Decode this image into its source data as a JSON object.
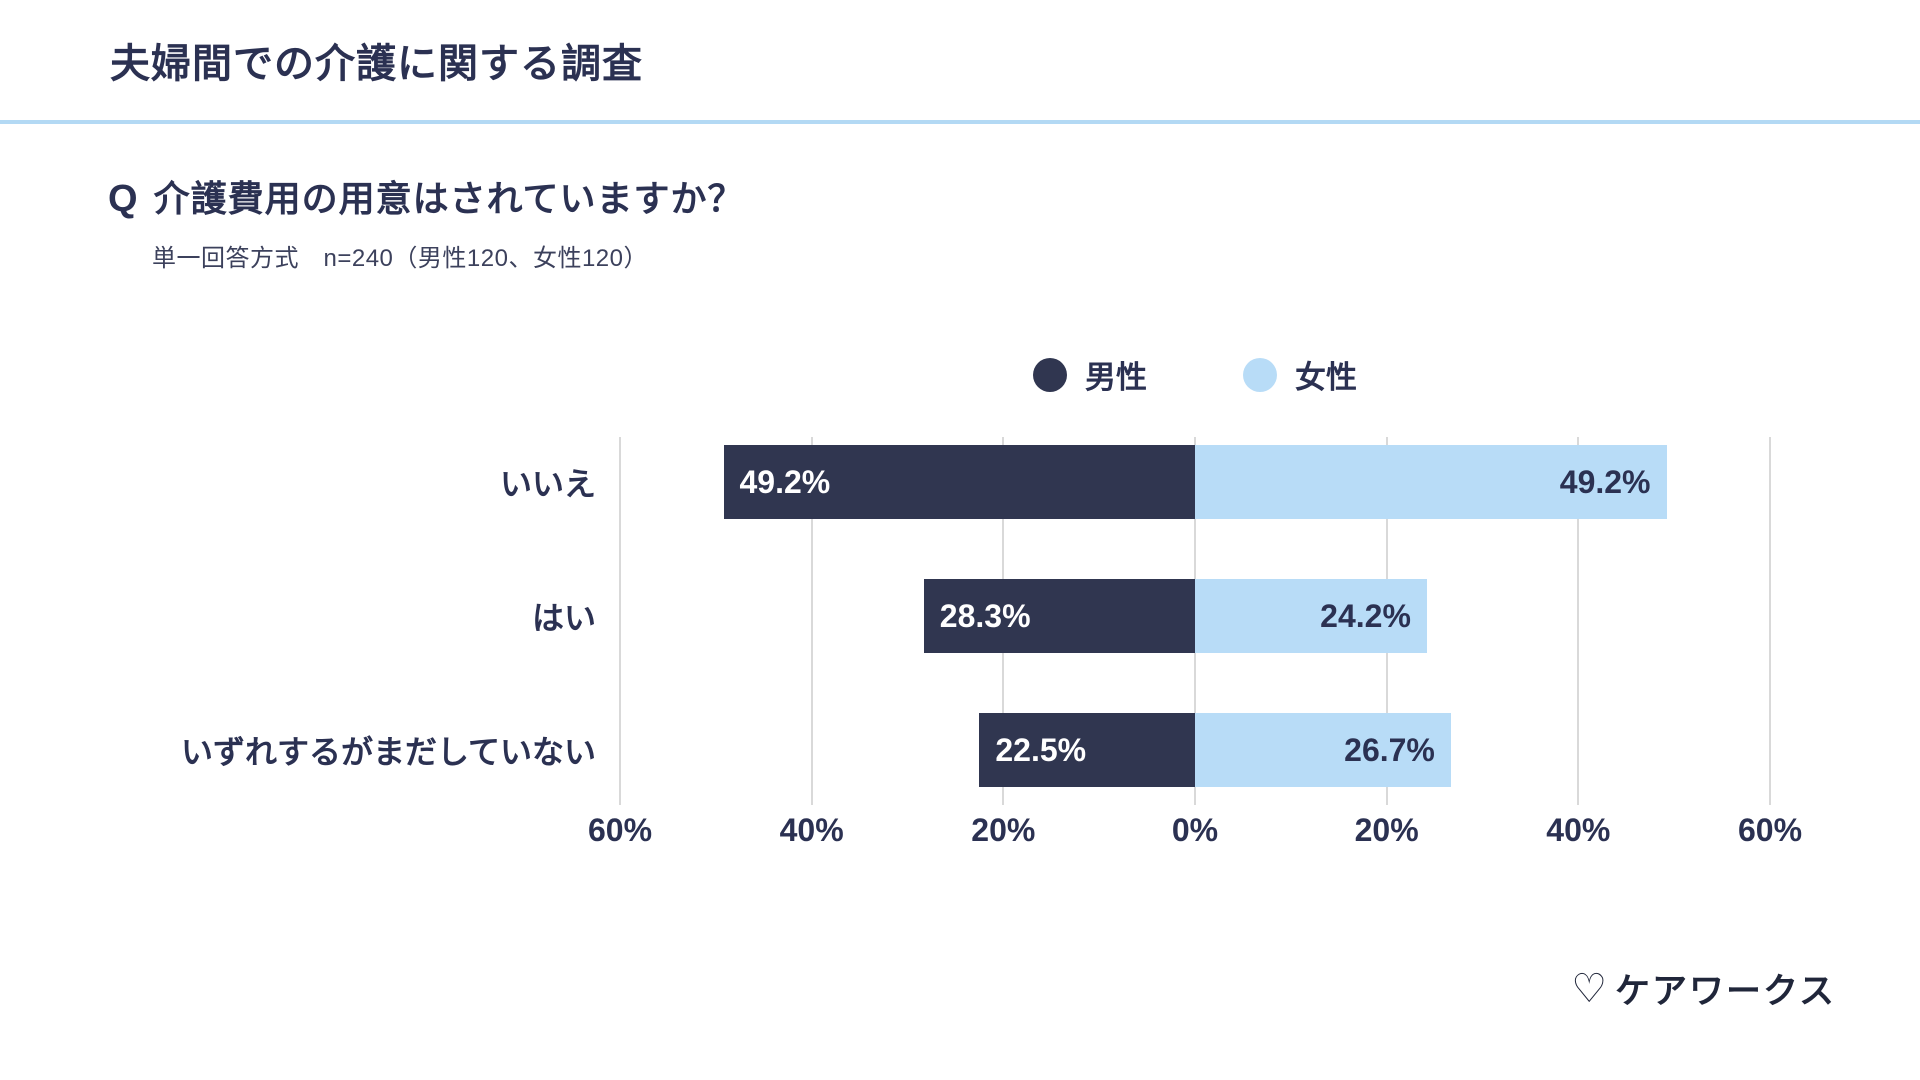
{
  "header": {
    "title": "夫婦間での介護に関する調査"
  },
  "question": {
    "q_label": "Q",
    "text": "介護費用の用意はされていますか？",
    "method": "単一回答方式　n=240（男性120、女性120）"
  },
  "legend": [
    {
      "label": "男性",
      "color": "#303650"
    },
    {
      "label": "女性",
      "color": "#b8dcf7"
    }
  ],
  "chart_data": {
    "type": "bar",
    "variant": "diverging-horizontal",
    "title": "介護費用の用意はされていますか？",
    "categories": [
      "いいえ",
      "はい",
      "いずれするがまだしていない"
    ],
    "series": [
      {
        "name": "男性",
        "side": "left",
        "color": "#303650",
        "values": [
          49.2,
          28.3,
          22.5
        ]
      },
      {
        "name": "女性",
        "side": "right",
        "color": "#b8dcf7",
        "values": [
          49.2,
          24.2,
          26.7
        ]
      }
    ],
    "value_suffix": "%",
    "axis": {
      "max": 60,
      "ticks": [
        -60,
        -40,
        -20,
        0,
        20,
        40,
        60
      ],
      "tick_labels": [
        "60%",
        "40%",
        "20%",
        "0%",
        "20%",
        "40%",
        "60%"
      ],
      "grid": true
    },
    "legend_position": "top-center"
  },
  "footer": {
    "logo_icon": "♡",
    "logo_text": "ケアワークス"
  }
}
